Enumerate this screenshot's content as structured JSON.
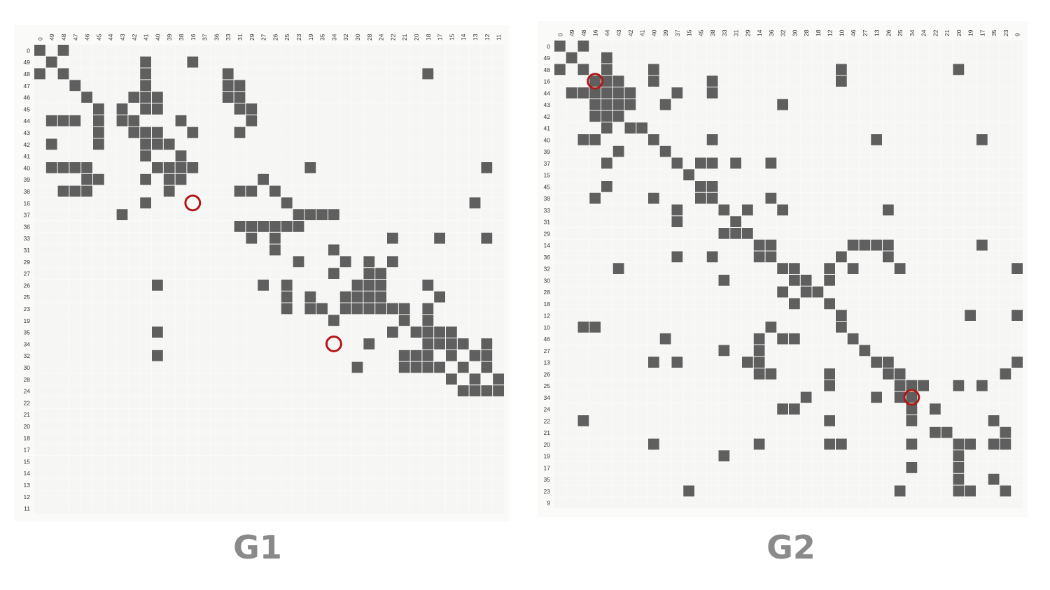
{
  "colors": {
    "filled": "#5f5f5f",
    "empty": "#f6f6f4",
    "grid": "#ffffff",
    "highlight": "#b01818",
    "title": "#8a8a8a"
  },
  "matrices": [
    {
      "title": "G1",
      "labels": [
        "0",
        "49",
        "48",
        "47",
        "46",
        "45",
        "44",
        "43",
        "42",
        "41",
        "40",
        "39",
        "38",
        "16",
        "37",
        "36",
        "33",
        "31",
        "29",
        "27",
        "26",
        "25",
        "23",
        "19",
        "35",
        "34",
        "32",
        "30",
        "28",
        "24",
        "22",
        "21",
        "20",
        "18",
        "17",
        "15",
        "14",
        "13",
        "12",
        "11"
      ],
      "rows": [
        "1010000000000000000000000000000000000000",
        "0100000001000100000000000000000000000000",
        "1010000001000000100000000000000001000000",
        "0001000001000000110000000000000000000000",
        "0000100011100000110000000000000000000000",
        "0000010101100000011000000000000000000000",
        "0111010110001000001000000000000000000000",
        "0000010011100100010000000000000000000000",
        "0100010001110000000000000000000000000000",
        "0000000001001000000000000000000000000000",
        "0111100000111100000000010000000000000010",
        "0000110001011000000100000000000000000000",
        "0011100000010000011010000000000000000000",
        "0000000001000000000001000000000000000100",
        "0000000100000000000000111100000000000000",
        "0000000000000000011111100000000000000000",
        "0000000000000000001010000000001000100010",
        "0000000000000000000010000100000000000000",
        "0000000000000000000000100010101000000000",
        "0000000000000000000000000100110000000000",
        "0000000000100000000101000001110001000000",
        "0000000000000000000001010011110000100000",
        "0000000000000000000001011011111101000000",
        "0000000000000000000000000100000101000000",
        "0000000000100000000000000000001011110000",
        "0000000000000000000000000000100001111010",
        "0000000000100000000000000000000111010110",
        "0000000000000000000000000001000111101010",
        "0000000000000000000000000000000000010101",
        "0000000000000000000000000000000000001111",
        "0000000000000000000000000000000000000000",
        "0000000000000000000000000000000000000000",
        "0000000000000000000000000000000000000000",
        "0000000000000000000000000000000000000000",
        "0000000000000000000000000000000000000000",
        "0000000000000000000000000000000000000000",
        "0000000000000000000000000000000000000000",
        "0000000000000000000000000000000000000000",
        "0000000000000000000000000000000000000000",
        "0000000000000000000000000000000000000000"
      ],
      "highlight": [
        [
          13,
          13
        ],
        [
          25,
          25
        ]
      ]
    },
    {
      "title": "G2",
      "labels": [
        "0",
        "49",
        "48",
        "16",
        "44",
        "43",
        "42",
        "41",
        "40",
        "39",
        "37",
        "15",
        "45",
        "38",
        "33",
        "31",
        "29",
        "14",
        "36",
        "32",
        "30",
        "28",
        "18",
        "12",
        "10",
        "46",
        "27",
        "13",
        "26",
        "25",
        "34",
        "24",
        "22",
        "21",
        "20",
        "19",
        "17",
        "35",
        "23",
        "9"
      ],
      "rows": [
        "1010000000000000000000000000000000000000",
        "0100100000000000000000000000000000000000",
        "1010100010000000000000001000000000100000",
        "0001110010000100000000001000000000000000",
        "0111111000100100000000000000000000000000",
        "0001111001000000000100000000000000000000",
        "0001110000000000000000000000000000000000",
        "0000101100000000000000000000000000000000",
        "0011000010000100000000000001000000001000",
        "0000010001000000000000000000000000000000",
        "0000100000101101001000000000000000000000",
        "0000000000010000000000000000000000000000",
        "0000100000001100000000000000000000000000",
        "0001000010001100001000000000000000000000",
        "0000000000100010100100000000100000000000",
        "0000000000100001000000000000000000000000",
        "0000000000000011100000000000000000000000",
        "0000000000000000011000000111100000001000",
        "0000000000100100011000001000100000000000",
        "0000010000000000000110010100010000000001",
        "0000000000000010000011010000000000000000",
        "0000000000000000000101100000000000000000",
        "0000000000000000000010010000000000000000",
        "0000000000000000000000001000000000010001",
        "0011000000000000001000001000000000000000",
        "0000000001000000010110000100000000000000",
        "0000000000000010010000000010000000000000",
        "0000000010100000110000000001100000000001",
        "0000000000000000011000010000110000000010",
        "0000000000000000000000010000011100101000",
        "0000000000000000000001000001011000000000",
        "0000000000000000000110000000001010000000",
        "0010000000000000000000010000001000000100",
        "0000000000000000000000000000000011000010",
        "0000000010000000010000011000001000110110",
        "0000000000000010000000000000000000100000",
        "0000000000000000000000000000001000100000",
        "0000000000000000000000000000000000100100",
        "0000000000010000000000000000010000110010",
        "0000000000000000000000000000000000000000"
      ],
      "highlight": [
        [
          3,
          3
        ],
        [
          30,
          30
        ]
      ]
    }
  ]
}
